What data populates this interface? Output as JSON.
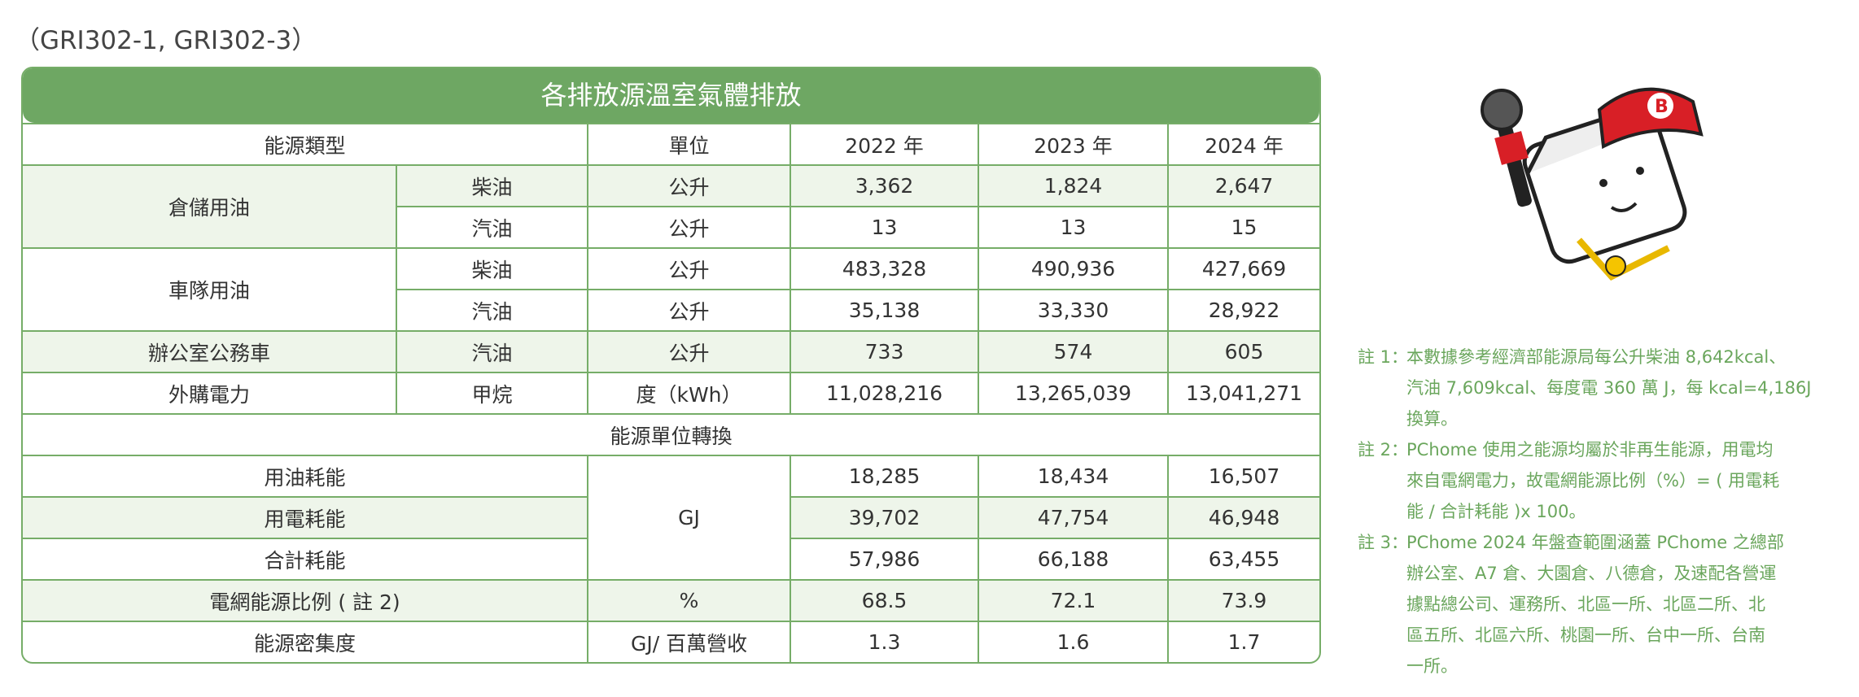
{
  "reference": "（GRI302-1, GRI302-3）",
  "table": {
    "title": "各排放源溫室氣體排放",
    "headers": [
      "能源類型",
      "單位",
      "2022 年",
      "2023 年",
      "2024 年"
    ],
    "groups": [
      {
        "name": "倉儲用油",
        "rows": [
          {
            "fuel": "柴油",
            "unit": "公升",
            "values": [
              "3,362",
              "1,824",
              "2,647"
            ]
          },
          {
            "fuel": "汽油",
            "unit": "公升",
            "values": [
              "13",
              "13",
              "15"
            ]
          }
        ]
      },
      {
        "name": "車隊用油",
        "rows": [
          {
            "fuel": "柴油",
            "unit": "公升",
            "values": [
              "483,328",
              "490,936",
              "427,669"
            ]
          },
          {
            "fuel": "汽油",
            "unit": "公升",
            "values": [
              "35,138",
              "33,330",
              "28,922"
            ]
          }
        ]
      },
      {
        "name": "辦公室公務車",
        "rows": [
          {
            "fuel": "汽油",
            "unit": "公升",
            "values": [
              "733",
              "574",
              "605"
            ]
          }
        ]
      },
      {
        "name": "外購電力",
        "rows": [
          {
            "fuel": "甲烷",
            "unit": "度（kWh）",
            "values": [
              "11,028,216",
              "13,265,039",
              "13,041,271"
            ]
          }
        ]
      }
    ],
    "section": "能源單位轉換",
    "energy_unit": "GJ",
    "energy_rows": [
      {
        "name": "用油耗能",
        "values": [
          "18,285",
          "18,434",
          "16,507"
        ]
      },
      {
        "name": "用電耗能",
        "values": [
          "39,702",
          "47,754",
          "46,948"
        ]
      },
      {
        "name": "合計耗能",
        "values": [
          "57,986",
          "66,188",
          "63,455"
        ]
      }
    ],
    "other_rows": [
      {
        "name": "電網能源比例 ( 註 2)",
        "unit": "%",
        "values": [
          "68.5",
          "72.1",
          "73.9"
        ]
      },
      {
        "name": "能源密集度",
        "unit": "GJ/ 百萬營收",
        "values": [
          "1.3",
          "1.6",
          "1.7"
        ]
      }
    ]
  },
  "notes": [
    {
      "label": "註 1：",
      "lines": [
        "本數據參考經濟部能源局每公升柴油 8,642kcal、",
        "汽油 7,609kcal、每度電 360 萬 J，每 kcal=4,186J",
        "換算。"
      ]
    },
    {
      "label": "註 2：",
      "lines": [
        "PChome 使用之能源均屬於非再生能源，用電均",
        "來自電網電力，故電網能源比例（%）= ( 用電耗",
        "能 / 合計耗能 )x 100。"
      ]
    },
    {
      "label": "註 3：",
      "lines": [
        "PChome 2024 年盤查範圍涵蓋 PChome 之總部",
        "辦公室、A7 倉、大園倉、八德倉，及速配各營運",
        "據點總公司、運務所、北區一所、北區二所、北",
        "區五所、北區六所、桃園一所、台中一所、台南",
        "一所。"
      ]
    }
  ]
}
